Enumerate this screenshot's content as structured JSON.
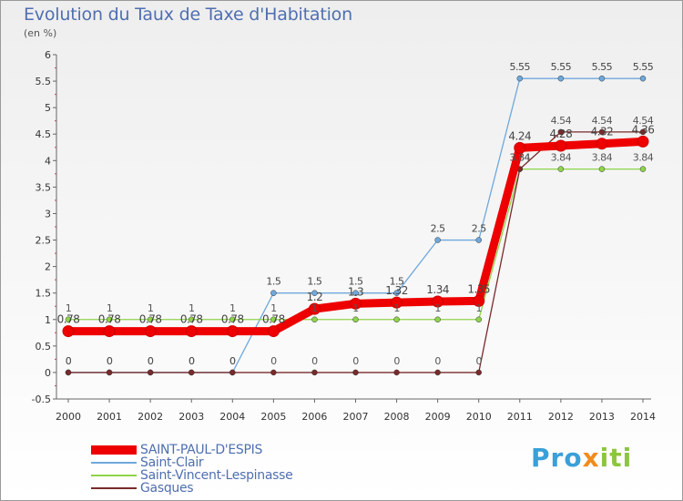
{
  "header": {
    "title": "Evolution du Taux de Taxe d'Habitation",
    "unit": "(en %)"
  },
  "logo": {
    "text_a": "Pro",
    "text_b": "x",
    "text_c": "iti"
  },
  "chart_data": {
    "type": "line",
    "title": "Evolution du Taux de Taxe d'Habitation",
    "ylabel": "(en %)",
    "xlabel": "",
    "x": [
      "2000",
      "2001",
      "2002",
      "2003",
      "2004",
      "2005",
      "2006",
      "2007",
      "2008",
      "2009",
      "2010",
      "2011",
      "2012",
      "2013",
      "2014"
    ],
    "ylim": [
      -0.5,
      6
    ],
    "yticks": [
      "-0.5",
      "0",
      "0.5",
      "1",
      "1.5",
      "2",
      "2.5",
      "3",
      "3.5",
      "4",
      "4.5",
      "5",
      "5.5",
      "6"
    ],
    "grid": false,
    "legend": "bottom-left",
    "series": [
      {
        "name": "SAINT-PAUL-D'ESPIS",
        "color": "#ee0000",
        "values": [
          0.78,
          0.78,
          0.78,
          0.78,
          0.78,
          0.78,
          1.2,
          1.3,
          1.32,
          1.34,
          1.35,
          4.24,
          4.28,
          4.32,
          4.36
        ],
        "labels": [
          "0.78",
          "0.78",
          "0.78",
          "0.78",
          "0.78",
          "0.78",
          "1.2",
          "1.3",
          "1.32",
          "1.34",
          "1.35",
          "4.24",
          "4.28",
          "4.32",
          "4.36"
        ]
      },
      {
        "name": "Saint-Clair",
        "color": "#6fa8dc",
        "values": [
          0,
          0,
          0,
          0,
          0,
          1.5,
          1.5,
          1.5,
          1.5,
          2.5,
          2.5,
          5.55,
          5.55,
          5.55,
          5.55
        ],
        "labels": [
          "0",
          "0",
          "0",
          "0",
          "0",
          "1.5",
          "1.5",
          "1.5",
          "1.5",
          "2.5",
          "2.5",
          "5.55",
          "5.55",
          "5.55",
          "5.55"
        ]
      },
      {
        "name": "Saint-Vincent-Lespinasse",
        "color": "#8fd44a",
        "values": [
          1,
          1,
          1,
          1,
          1,
          1,
          1,
          1,
          1,
          1,
          1,
          3.84,
          3.84,
          3.84,
          3.84
        ],
        "labels": [
          "1",
          "1",
          "1",
          "1",
          "1",
          "1",
          "1",
          "1",
          "1",
          "1",
          "1",
          "3.84",
          "3.84",
          "3.84",
          "3.84"
        ]
      },
      {
        "name": "Gasques",
        "color": "#7a2a2a",
        "values": [
          0,
          0,
          0,
          0,
          0,
          0,
          0,
          0,
          0,
          0,
          0,
          3.84,
          4.54,
          4.54,
          4.54
        ],
        "labels": [
          "0",
          "0",
          "0",
          "0",
          "0",
          "0",
          "0",
          "0",
          "0",
          "0",
          "0",
          "3.84",
          "4.54",
          "4.54",
          "4.54"
        ]
      }
    ]
  }
}
